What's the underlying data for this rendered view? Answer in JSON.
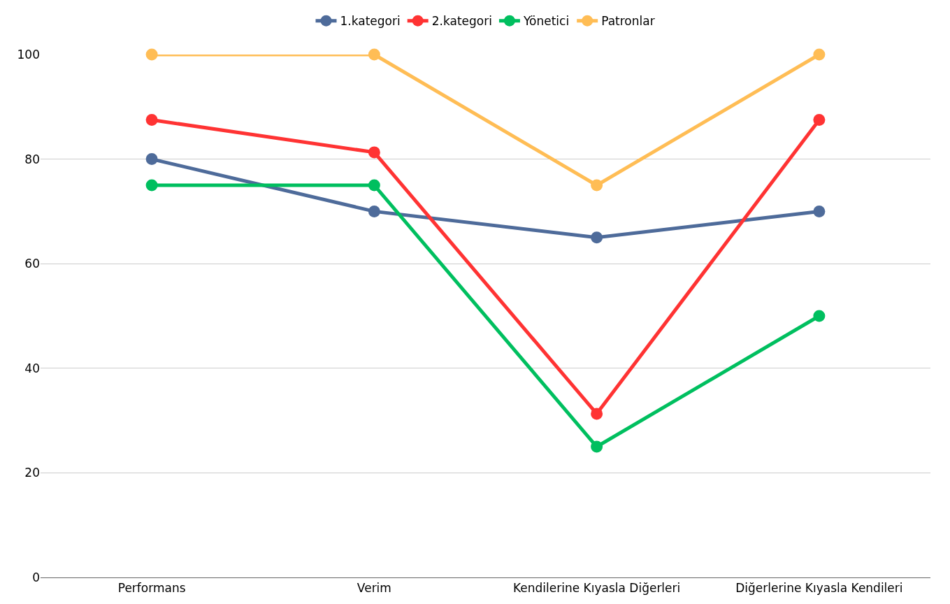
{
  "chart_data": {
    "type": "line",
    "categories": [
      "Performans",
      "Verim",
      "Kendilerine Kıyasla Diğerleri",
      "Diğerlerine Kıyasla Kendileri"
    ],
    "series": [
      {
        "name": "1.kategori",
        "color": "#4e6b9a",
        "values": [
          80,
          70,
          65,
          70
        ]
      },
      {
        "name": "2.kategori",
        "color": "#ff3333",
        "values": [
          87.5,
          81.3,
          31.3,
          87.5
        ]
      },
      {
        "name": "Yönetici",
        "color": "#00bf5f",
        "values": [
          75,
          75,
          25,
          50
        ]
      },
      {
        "name": "Patronlar",
        "color": "#ffbd55",
        "values": [
          100,
          100,
          75,
          100
        ]
      }
    ],
    "ylim": [
      0,
      100
    ],
    "yticks": [
      0,
      20,
      40,
      60,
      80,
      100
    ],
    "grid": "y",
    "legend": "top",
    "marker": "circle",
    "line_style": "solid"
  }
}
